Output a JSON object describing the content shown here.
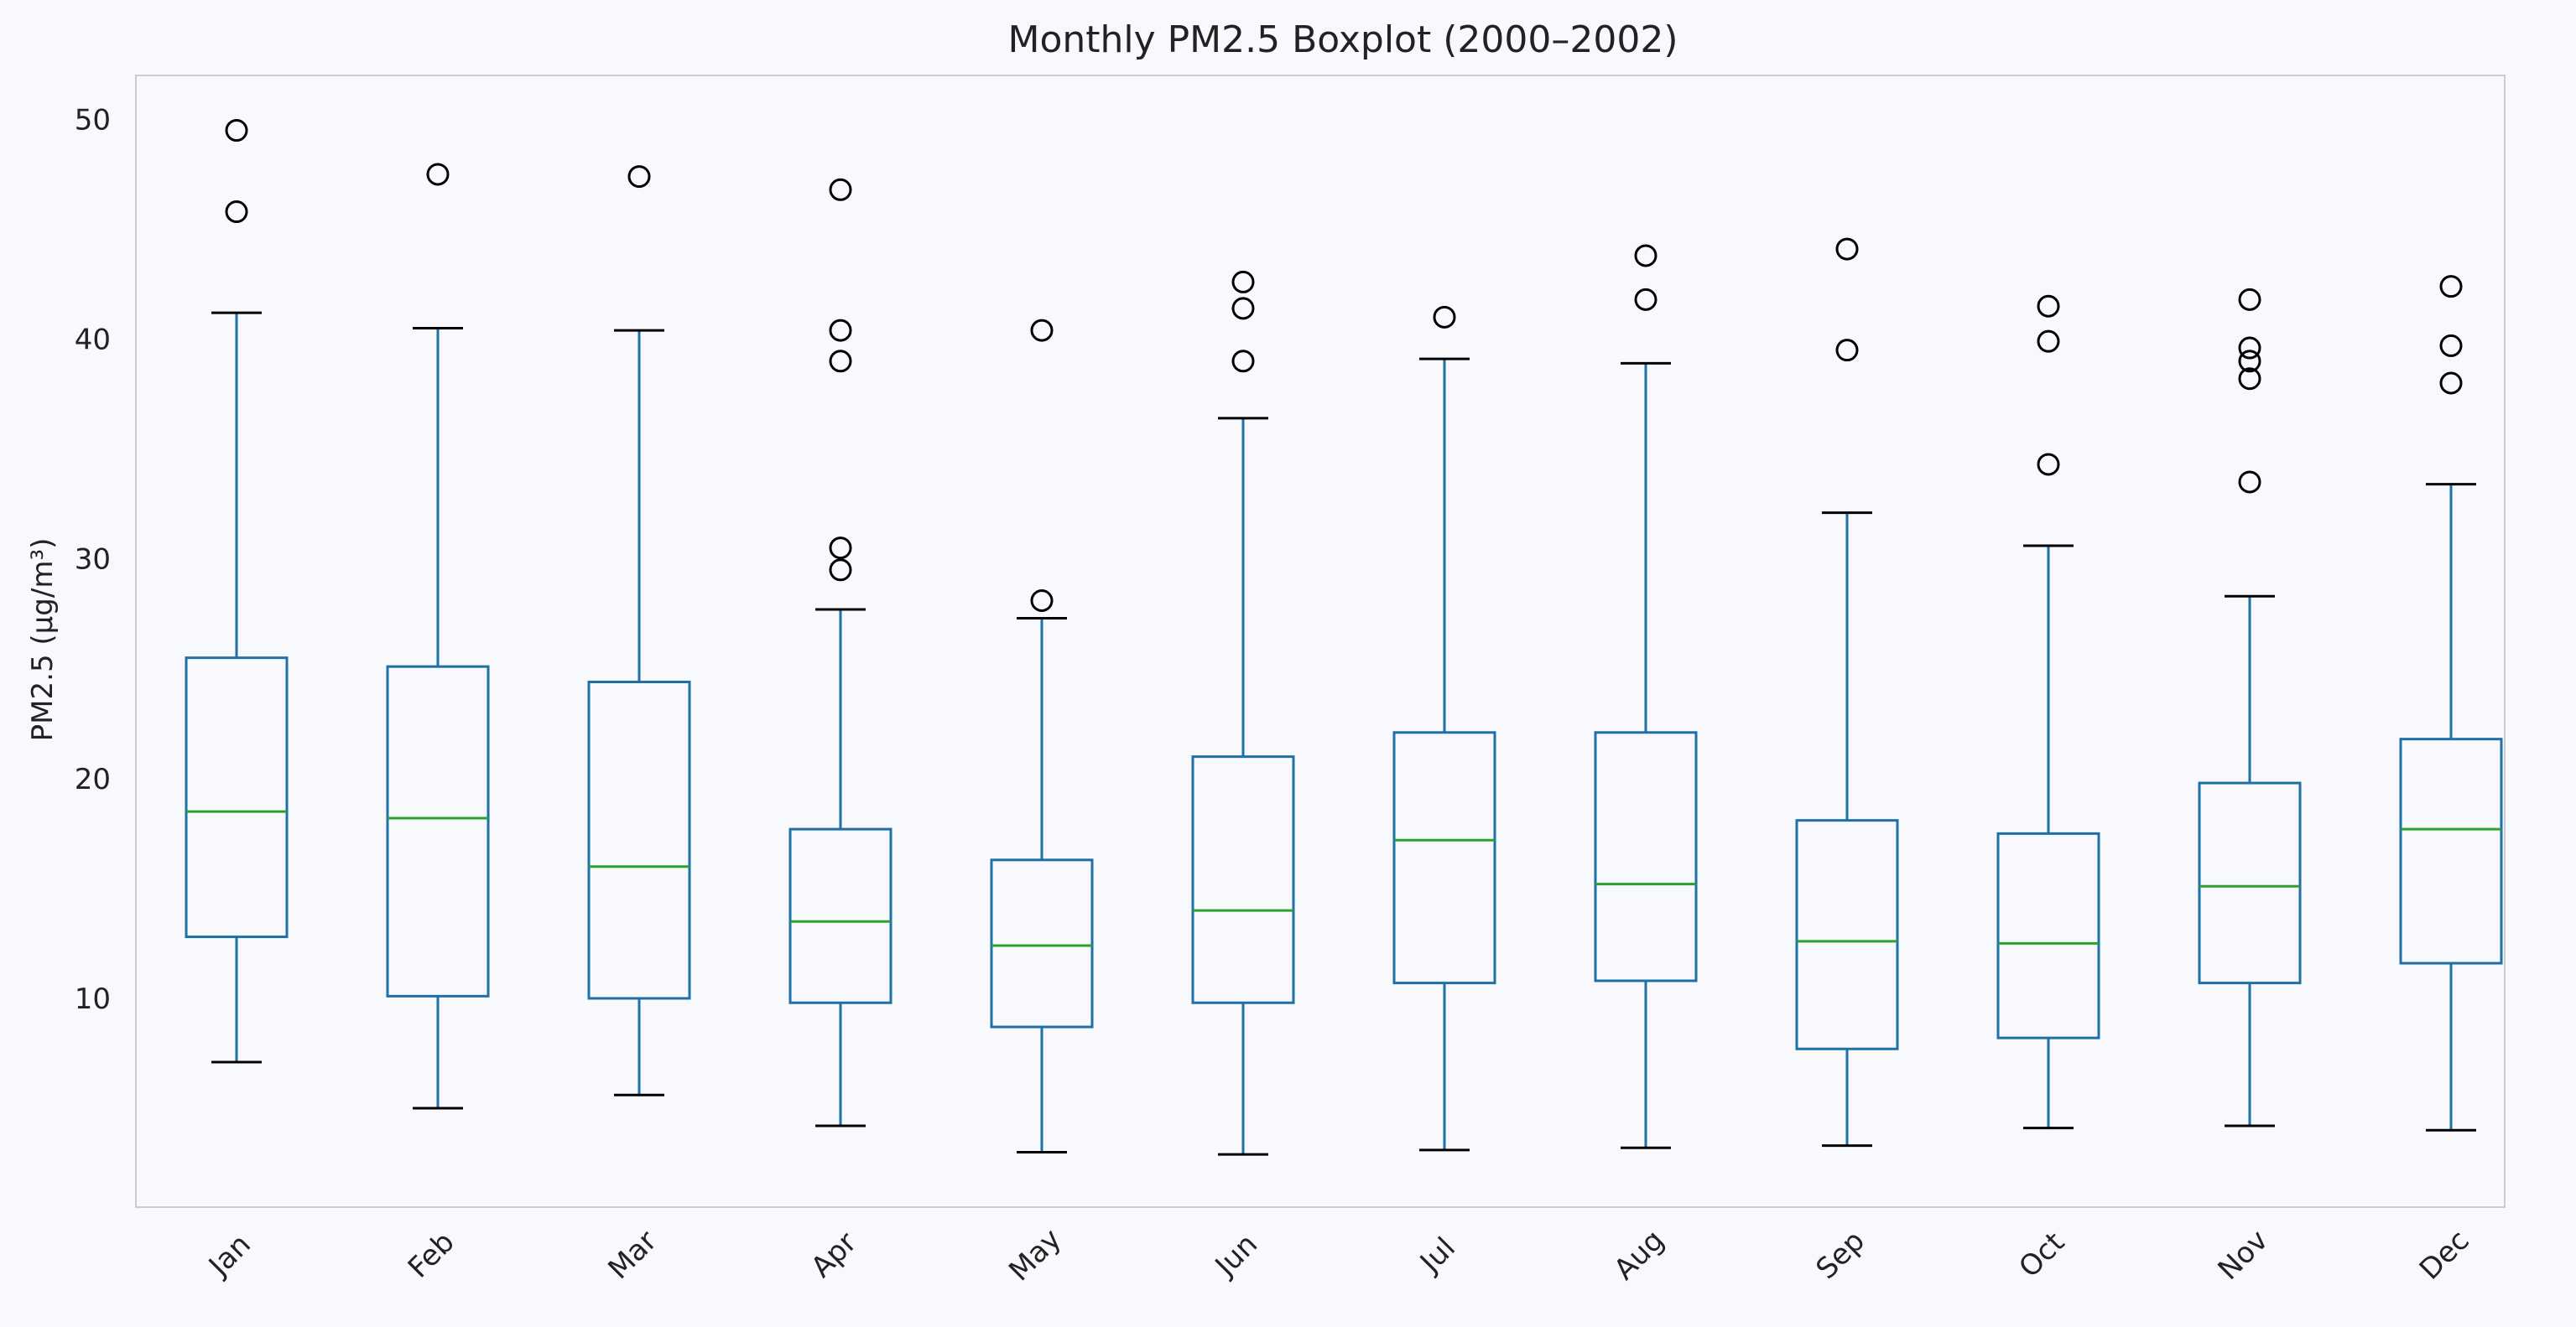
{
  "chart_data": {
    "type": "box",
    "title": "Monthly PM2.5 Boxplot (2000–2002)",
    "xlabel": "",
    "ylabel": "PM2.5 (μg/m³)",
    "ylim": [
      0.5,
      52
    ],
    "yticks": [
      10,
      20,
      30,
      40,
      50
    ],
    "grid": false,
    "categories": [
      "Jan",
      "Feb",
      "Mar",
      "Apr",
      "May",
      "Jun",
      "Jul",
      "Aug",
      "Sep",
      "Oct",
      "Nov",
      "Dec"
    ],
    "boxes": [
      {
        "month": "Jan",
        "whisker_low": 7.1,
        "q1": 12.8,
        "median": 18.5,
        "q3": 25.5,
        "whisker_high": 41.2,
        "outliers": [
          45.8,
          49.5
        ]
      },
      {
        "month": "Feb",
        "whisker_low": 5.0,
        "q1": 10.1,
        "median": 18.2,
        "q3": 25.1,
        "whisker_high": 40.5,
        "outliers": [
          47.5
        ]
      },
      {
        "month": "Mar",
        "whisker_low": 5.6,
        "q1": 10.0,
        "median": 16.0,
        "q3": 24.4,
        "whisker_high": 40.4,
        "outliers": [
          47.4
        ]
      },
      {
        "month": "Apr",
        "whisker_low": 4.2,
        "q1": 9.8,
        "median": 13.5,
        "q3": 17.7,
        "whisker_high": 27.7,
        "outliers": [
          29.5,
          30.5,
          39.0,
          40.4,
          46.8
        ]
      },
      {
        "month": "May",
        "whisker_low": 3.0,
        "q1": 8.7,
        "median": 12.4,
        "q3": 16.3,
        "whisker_high": 27.3,
        "outliers": [
          28.1,
          40.4
        ]
      },
      {
        "month": "Jun",
        "whisker_low": 2.9,
        "q1": 9.8,
        "median": 14.0,
        "q3": 21.0,
        "whisker_high": 36.4,
        "outliers": [
          39.0,
          41.4,
          42.6
        ]
      },
      {
        "month": "Jul",
        "whisker_low": 3.1,
        "q1": 10.7,
        "median": 17.2,
        "q3": 22.1,
        "whisker_high": 39.1,
        "outliers": [
          41.0
        ]
      },
      {
        "month": "Aug",
        "whisker_low": 3.2,
        "q1": 10.8,
        "median": 15.2,
        "q3": 22.1,
        "whisker_high": 38.9,
        "outliers": [
          41.8,
          43.8
        ]
      },
      {
        "month": "Sep",
        "whisker_low": 3.3,
        "q1": 7.7,
        "median": 12.6,
        "q3": 18.1,
        "whisker_high": 32.1,
        "outliers": [
          39.5,
          44.1
        ]
      },
      {
        "month": "Oct",
        "whisker_low": 4.1,
        "q1": 8.2,
        "median": 12.5,
        "q3": 17.5,
        "whisker_high": 30.6,
        "outliers": [
          34.3,
          39.9,
          41.5
        ]
      },
      {
        "month": "Nov",
        "whisker_low": 4.2,
        "q1": 10.7,
        "median": 15.1,
        "q3": 19.8,
        "whisker_high": 28.3,
        "outliers": [
          33.5,
          38.2,
          39.0,
          39.6,
          41.8
        ]
      },
      {
        "month": "Dec",
        "whisker_low": 4.0,
        "q1": 11.6,
        "median": 17.7,
        "q3": 21.8,
        "whisker_high": 33.4,
        "outliers": [
          38.0,
          39.7,
          42.4
        ]
      }
    ],
    "colors": {
      "background": "#f7f9fc",
      "box": "#1f6fa8",
      "median": "#2ca02c",
      "whisker_cap": "#000000",
      "outlier": "#000000",
      "frame": "#cccccc",
      "text": "#222222"
    }
  }
}
